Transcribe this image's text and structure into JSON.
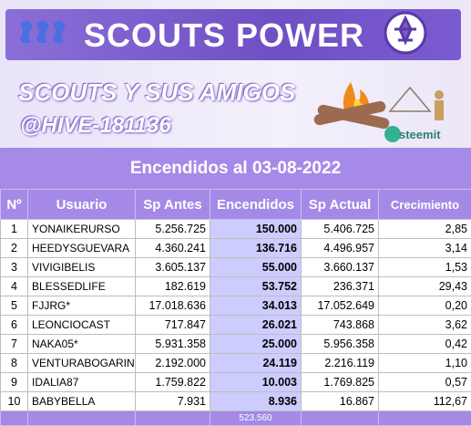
{
  "banner": {
    "title": "SCOUTS POWER",
    "subtitle": "SCOUTS Y SUS AMIGOS",
    "handle": "@HIVE-181136",
    "brand": "steemit"
  },
  "table": {
    "title": "Encendidos al 03-08-2022",
    "headers": [
      "Nº",
      "Usuario",
      "Sp Antes",
      "Encendidos",
      "Sp Actual",
      "Crecimiento"
    ],
    "rows": [
      [
        "1",
        "YONAIKERURSO",
        "5.256.725",
        "150.000",
        "5.406.725",
        "2,85"
      ],
      [
        "2",
        "HEEDYSGUEVARA",
        "4.360.241",
        "136.716",
        "4.496.957",
        "3,14"
      ],
      [
        "3",
        "VIVIGIBELIS",
        "3.605.137",
        "55.000",
        "3.660.137",
        "1,53"
      ],
      [
        "4",
        "BLESSEDLIFE",
        "182.619",
        "53.752",
        "236.371",
        "29,43"
      ],
      [
        "5",
        "FJJRG*",
        "17.018.636",
        "34.013",
        "17.052.649",
        "0,20"
      ],
      [
        "6",
        "LEONCIOCAST",
        "717.847",
        "26.021",
        "743.868",
        "3,62"
      ],
      [
        "7",
        "NAKA05*",
        "5.931.358",
        "25.000",
        "5.956.358",
        "0,42"
      ],
      [
        "8",
        "VENTURABOGARIN",
        "2.192.000",
        "24.119",
        "2.216.119",
        "1,10"
      ],
      [
        "9",
        "IDALIA87",
        "1.759.822",
        "10.003",
        "1.769.825",
        "0,57"
      ],
      [
        "10",
        "BABYBELLA",
        "7.931",
        "8.936",
        "16.867",
        "112,67"
      ]
    ],
    "total": "523.560"
  }
}
